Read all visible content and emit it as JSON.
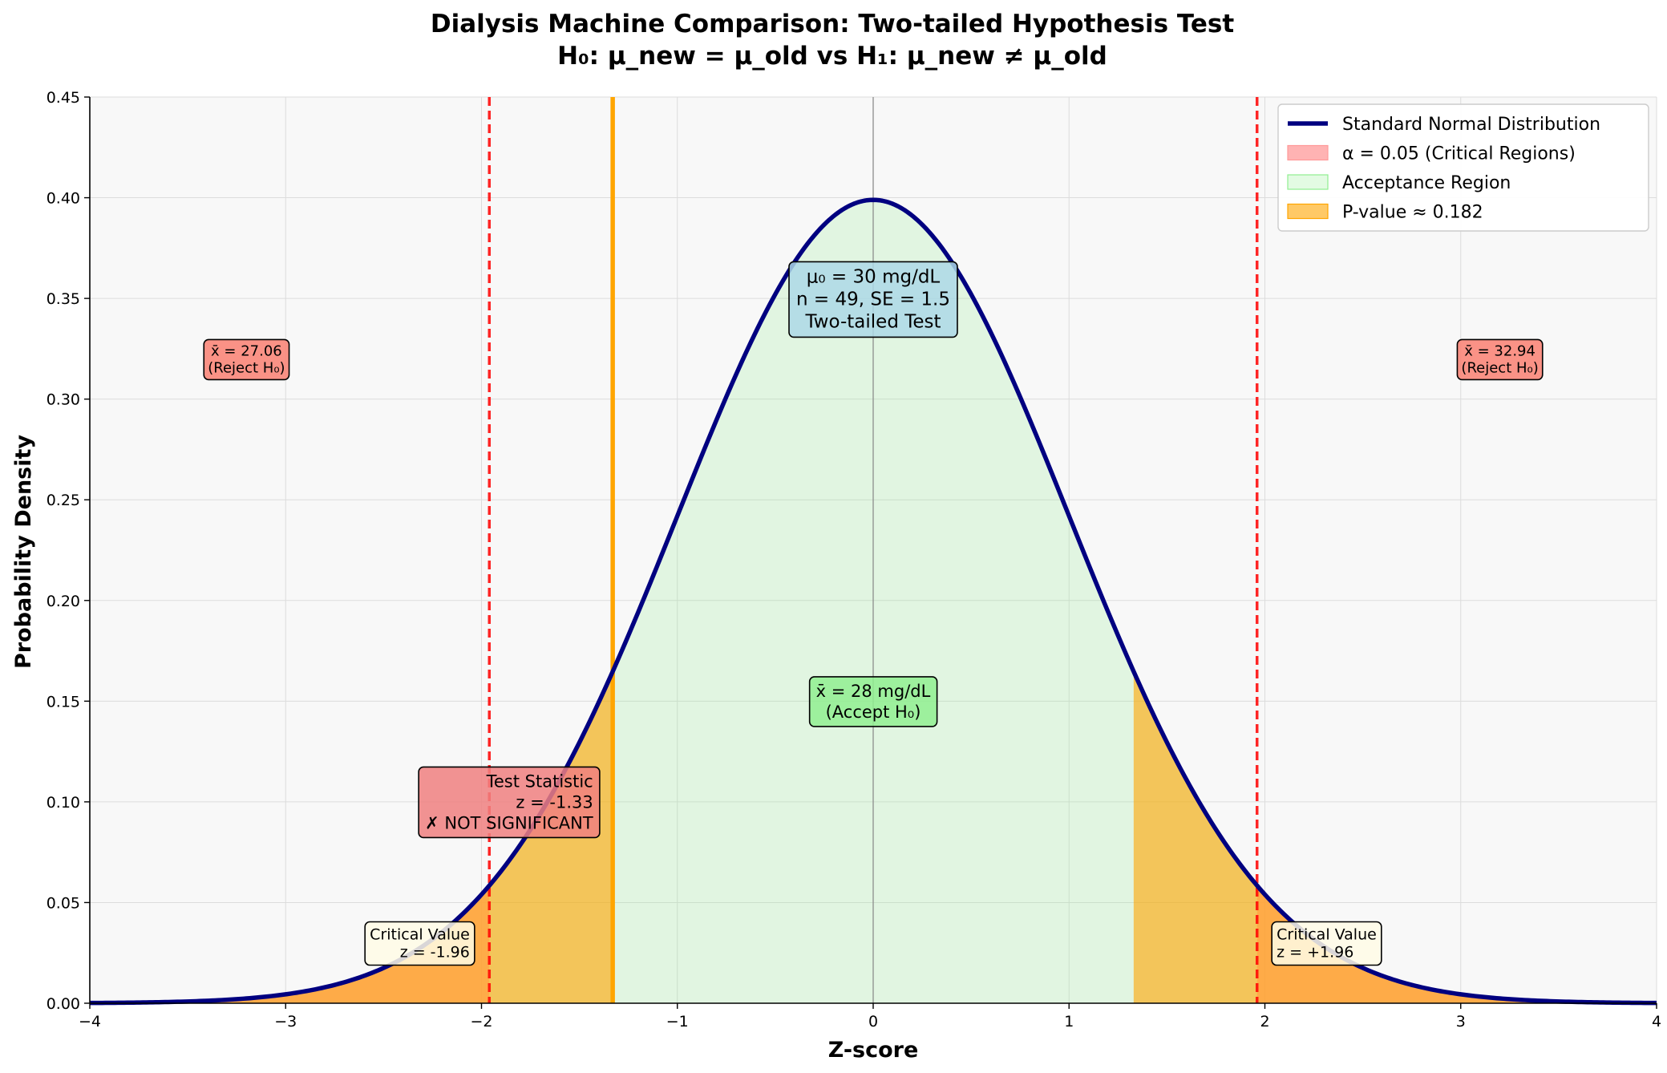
{
  "chart_data": {
    "type": "area",
    "title": "Dialysis Machine Comparison: Two-tailed Hypothesis Test",
    "subtitle": "H₀: μ_new = μ_old vs H₁: μ_new ≠ μ_old",
    "xlabel": "Z-score",
    "ylabel": "Probability Density",
    "xlim": [
      -4,
      4
    ],
    "ylim": [
      0,
      0.45
    ],
    "xticks": [
      -4,
      -3,
      -2,
      -1,
      0,
      1,
      2,
      3,
      4
    ],
    "xtick_labels": [
      "−4",
      "−3",
      "−2",
      "−1",
      "0",
      "1",
      "2",
      "3",
      "4"
    ],
    "yticks": [
      0,
      0.05,
      0.1,
      0.15,
      0.2,
      0.25,
      0.3,
      0.35,
      0.4,
      0.45
    ],
    "ytick_labels": [
      "0.00",
      "0.05",
      "0.10",
      "0.15",
      "0.20",
      "0.25",
      "0.30",
      "0.35",
      "0.40",
      "0.45"
    ],
    "grid": true,
    "legend_position": "top-right",
    "series": [
      {
        "name": "Standard Normal Distribution",
        "kind": "line",
        "color": "#000080",
        "function": "standard normal pdf"
      },
      {
        "name": "α = 0.05 (Critical Regions)",
        "kind": "area",
        "color": "#ff9999",
        "x_ranges": [
          [
            -4,
            -1.96
          ],
          [
            1.96,
            4
          ]
        ]
      },
      {
        "name": "Acceptance Region",
        "kind": "area",
        "color": "#90ee90",
        "x_ranges": [
          [
            -1.96,
            1.96
          ]
        ]
      },
      {
        "name": "P-value ≈ 0.182",
        "kind": "area",
        "color": "#ffa500",
        "x_ranges": [
          [
            -4,
            -1.33
          ],
          [
            1.33,
            4
          ]
        ]
      }
    ],
    "critical_values": [
      -1.96,
      1.96
    ],
    "test_statistic": -1.33,
    "reference_line_x": 0,
    "colors": {
      "curve": "#000080",
      "critical_line": "#ff0000",
      "test_stat_line": "#ffa500",
      "critical_fill": "#ff9999",
      "acceptance_fill": "#90ee90",
      "pvalue_fill": "#ffa500",
      "plot_background": "#f8f8f8"
    },
    "annotations": [
      {
        "id": "info",
        "lines": [
          "μ₀ = 30 mg/dL",
          "n = 49, SE = 1.5",
          "Two-tailed Test"
        ],
        "x": 0,
        "y": 0.35,
        "align": "center",
        "bg": "#add8e6"
      },
      {
        "id": "sample-mean",
        "lines": [
          "x̄ = 28 mg/dL",
          "(Accept H₀)"
        ],
        "x": 0,
        "y": 0.15,
        "align": "center",
        "bg": "#90ee90"
      },
      {
        "id": "test-stat",
        "lines": [
          "Test Statistic",
          "z = -1.33",
          "✗ NOT SIGNIFICANT"
        ],
        "x": -1.43,
        "y": 0.1,
        "align": "right",
        "bg": "#f08080"
      },
      {
        "id": "crit-left",
        "lines": [
          "Critical Value",
          "z = -1.96"
        ],
        "x": -2.06,
        "y": 0.03,
        "align": "right",
        "bg": "#fffbe6"
      },
      {
        "id": "crit-right",
        "lines": [
          "Critical Value",
          "z = +1.96"
        ],
        "x": 2.06,
        "y": 0.03,
        "align": "left",
        "bg": "#fffbe6"
      },
      {
        "id": "reject-left",
        "lines": [
          "x̄ = 27.06",
          "(Reject H₀)"
        ],
        "x": -3.2,
        "y": 0.32,
        "align": "center",
        "bg": "#fa8072"
      },
      {
        "id": "reject-right",
        "lines": [
          "x̄ = 32.94",
          "(Reject H₀)"
        ],
        "x": 3.2,
        "y": 0.32,
        "align": "center",
        "bg": "#fa8072"
      }
    ]
  }
}
